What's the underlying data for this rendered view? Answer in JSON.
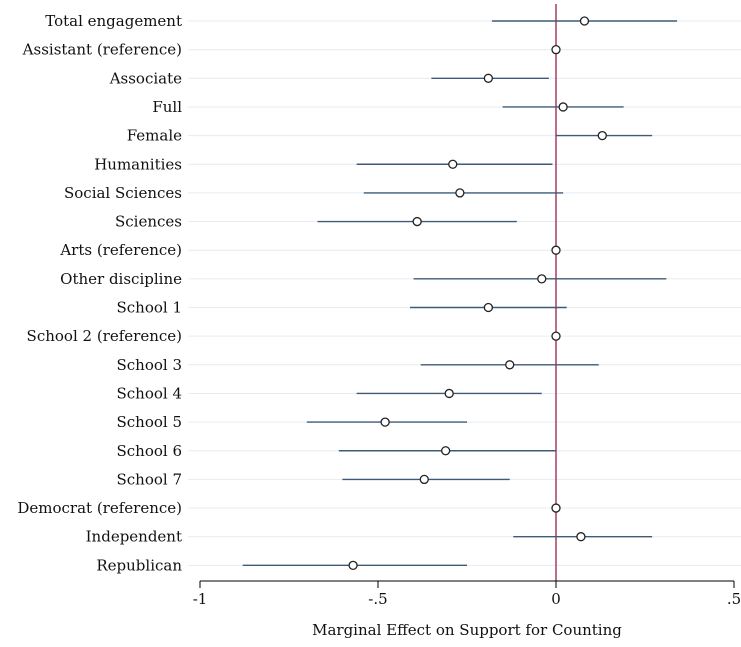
{
  "chart_data": {
    "type": "scatter",
    "subtype": "coefficient-plot-with-confidence-intervals",
    "title": "",
    "xlabel": "Marginal Effect on Support for Counting",
    "ylabel": "",
    "xlim": [
      -1,
      0.5
    ],
    "x_ticks": [
      {
        "value": -1,
        "label": "-1"
      },
      {
        "value": -0.5,
        "label": "-.5"
      },
      {
        "value": 0,
        "label": "0"
      },
      {
        "value": 0.5,
        "label": ".5"
      }
    ],
    "reference_line": {
      "x": 0,
      "color": "#a0305a"
    },
    "grid": true,
    "grid_axis": "y",
    "colors": {
      "interval": "#3d5a78",
      "marker": "#222222",
      "grid": "#e6ecf2",
      "axis": "#000000"
    },
    "points": [
      {
        "label": "Total engagement",
        "estimate": 0.08,
        "lower": -0.18,
        "upper": 0.34
      },
      {
        "label": "Assistant (reference)",
        "estimate": 0.0,
        "lower": null,
        "upper": null
      },
      {
        "label": "Associate",
        "estimate": -0.19,
        "lower": -0.35,
        "upper": -0.02
      },
      {
        "label": "Full",
        "estimate": 0.02,
        "lower": -0.15,
        "upper": 0.19
      },
      {
        "label": "Female",
        "estimate": 0.13,
        "lower": 0.0,
        "upper": 0.27
      },
      {
        "label": "Humanities",
        "estimate": -0.29,
        "lower": -0.56,
        "upper": -0.01
      },
      {
        "label": "Social Sciences",
        "estimate": -0.27,
        "lower": -0.54,
        "upper": 0.02
      },
      {
        "label": "Sciences",
        "estimate": -0.39,
        "lower": -0.67,
        "upper": -0.11
      },
      {
        "label": "Arts (reference)",
        "estimate": 0.0,
        "lower": null,
        "upper": null
      },
      {
        "label": "Other discipline",
        "estimate": -0.04,
        "lower": -0.4,
        "upper": 0.31
      },
      {
        "label": "School 1",
        "estimate": -0.19,
        "lower": -0.41,
        "upper": 0.03
      },
      {
        "label": "School 2 (reference)",
        "estimate": 0.0,
        "lower": null,
        "upper": null
      },
      {
        "label": "School 3",
        "estimate": -0.13,
        "lower": -0.38,
        "upper": 0.12
      },
      {
        "label": "School 4",
        "estimate": -0.3,
        "lower": -0.56,
        "upper": -0.04
      },
      {
        "label": "School 5",
        "estimate": -0.48,
        "lower": -0.7,
        "upper": -0.25
      },
      {
        "label": "School 6",
        "estimate": -0.31,
        "lower": -0.61,
        "upper": 0.0
      },
      {
        "label": "School 7",
        "estimate": -0.37,
        "lower": -0.6,
        "upper": -0.13
      },
      {
        "label": "Democrat (reference)",
        "estimate": 0.0,
        "lower": null,
        "upper": null
      },
      {
        "label": "Independent",
        "estimate": 0.07,
        "lower": -0.12,
        "upper": 0.27
      },
      {
        "label": "Republican",
        "estimate": -0.57,
        "lower": -0.88,
        "upper": -0.25
      }
    ]
  }
}
